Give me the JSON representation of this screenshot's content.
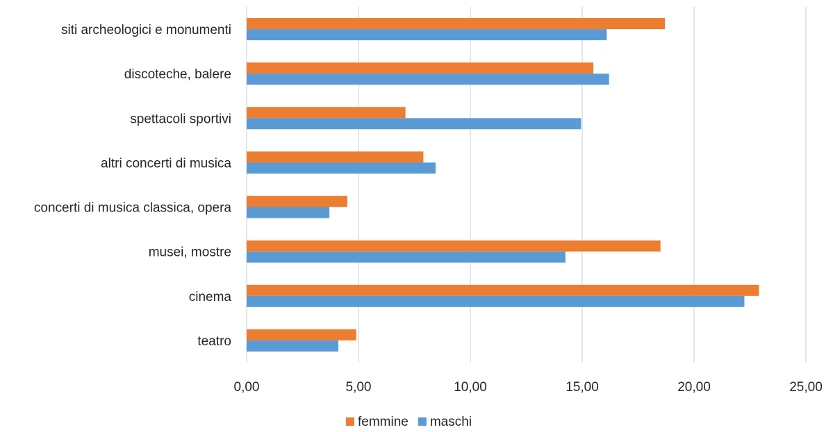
{
  "chart_data": {
    "type": "bar",
    "orientation": "horizontal",
    "categories": [
      "siti archeologici e monumenti",
      "discoteche, balere",
      "spettacoli sportivi",
      "altri concerti di musica",
      "concerti di musica classica, opera",
      "musei, mostre",
      "cinema",
      "teatro"
    ],
    "series": [
      {
        "name": "femmine",
        "color": "#ed7d31",
        "values": [
          18.7,
          15.5,
          7.1,
          7.9,
          4.5,
          18.5,
          22.9,
          4.9
        ]
      },
      {
        "name": "maschi",
        "color": "#5b9bd5",
        "values": [
          16.1,
          16.2,
          14.95,
          8.45,
          3.7,
          14.25,
          22.25,
          4.1
        ]
      }
    ],
    "xlim": [
      0,
      25
    ],
    "xticks": [
      0,
      5,
      10,
      15,
      20,
      25
    ],
    "tick_labels": [
      "0,00",
      "5,00",
      "10,00",
      "15,00",
      "20,00",
      "25,00"
    ],
    "grid": true,
    "legend_position": "bottom",
    "title": "",
    "xlabel": "",
    "ylabel": ""
  }
}
